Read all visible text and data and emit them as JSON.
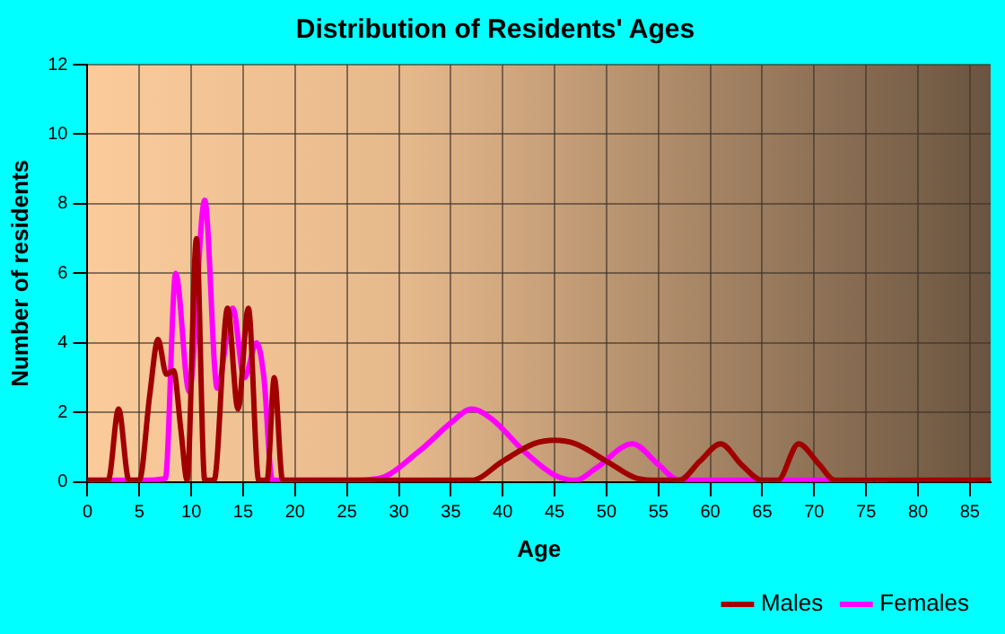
{
  "chart_data": {
    "type": "line",
    "title": "Distribution of Residents' Ages",
    "xlabel": "Age",
    "ylabel": "Number of residents",
    "xlim": [
      0,
      87
    ],
    "xticks": [
      0,
      5,
      10,
      15,
      20,
      25,
      30,
      35,
      40,
      45,
      50,
      55,
      60,
      65,
      70,
      75,
      80,
      85
    ],
    "ylim": [
      0,
      12
    ],
    "yticks": [
      0,
      2,
      4,
      6,
      8,
      10,
      12
    ],
    "grid": true,
    "legend": "bottom right",
    "marker": "none",
    "line_style": "solid",
    "series": [
      {
        "name": "Males",
        "color": "#a00000",
        "x": [
          0,
          2,
          3,
          4,
          5,
          6,
          6.8,
          7.6,
          8.3,
          9,
          9.6,
          10.5,
          11.3,
          12.2,
          13.5,
          14.5,
          15.5,
          16.5,
          17.3,
          18,
          18.8,
          20,
          25,
          30,
          35,
          37,
          40,
          43,
          45,
          47,
          50,
          53,
          55,
          57,
          59,
          61,
          63,
          65,
          66.5,
          68.5,
          70.5,
          72,
          75,
          80,
          87
        ],
        "values": [
          0.05,
          0.05,
          2.1,
          0.05,
          0.05,
          2.5,
          4.1,
          3.1,
          3.2,
          1.5,
          0.05,
          7,
          0.05,
          0.05,
          5,
          2.1,
          5,
          0.05,
          0.05,
          3,
          0.05,
          0.05,
          0.05,
          0.05,
          0.05,
          0.05,
          0.6,
          1.1,
          1.2,
          1.1,
          0.6,
          0.1,
          0.05,
          0.05,
          0.6,
          1.1,
          0.5,
          0.05,
          0.05,
          1.1,
          0.5,
          0.05,
          0.05,
          0.05,
          0.05
        ]
      },
      {
        "name": "Females",
        "color": "#ff00ff",
        "x": [
          0,
          5,
          7.5,
          8.5,
          9.8,
          11.3,
          12.5,
          14,
          15.1,
          16.3,
          17,
          17.8,
          20,
          25,
          28,
          32,
          35,
          37,
          39,
          42,
          45,
          47,
          49,
          52.5,
          55,
          57,
          60,
          65,
          70,
          77
        ],
        "values": [
          0.05,
          0.05,
          0.1,
          6,
          2.6,
          8.1,
          2.7,
          5,
          3,
          4,
          3,
          0.05,
          0.05,
          0.05,
          0.1,
          0.9,
          1.7,
          2.1,
          1.8,
          0.9,
          0.2,
          0.05,
          0.4,
          1.1,
          0.5,
          0.05,
          0.05,
          0.05,
          0.05,
          0
        ]
      }
    ]
  }
}
